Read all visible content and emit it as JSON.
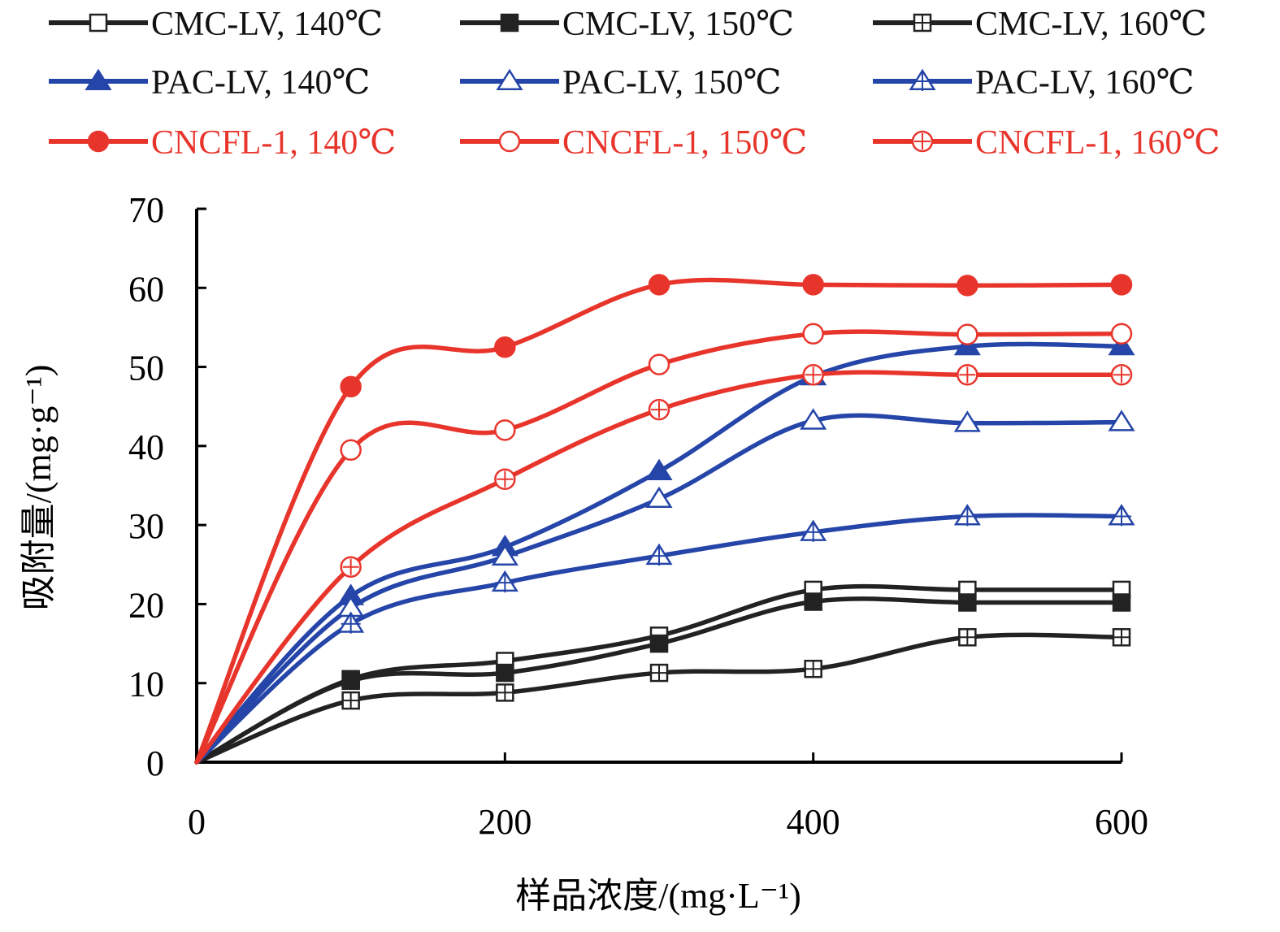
{
  "chart_data": {
    "type": "line",
    "title": "",
    "xlabel": "样品浓度/(mg·L⁻¹)",
    "ylabel": "吸附量/(mg·g⁻¹)",
    "xlim": [
      0,
      600
    ],
    "ylim": [
      0,
      70
    ],
    "xticks": [
      "0",
      "200",
      "400",
      "600"
    ],
    "yticks": [
      "0",
      "10",
      "20",
      "30",
      "40",
      "50",
      "60",
      "70"
    ],
    "grid": false,
    "legend_position": "top",
    "x": [
      0,
      100,
      200,
      300,
      400,
      500,
      600
    ],
    "series": [
      {
        "name": "CMC-LV, 140℃",
        "color": "#222222",
        "marker": "square-open",
        "values": [
          0,
          10.5,
          12.8,
          16.0,
          21.8,
          21.8,
          21.8
        ]
      },
      {
        "name": "CMC-LV, 150℃",
        "color": "#222222",
        "marker": "square-filled",
        "values": [
          0,
          10.3,
          11.3,
          15.0,
          20.3,
          20.2,
          20.2
        ]
      },
      {
        "name": "CMC-LV, 160℃",
        "color": "#222222",
        "marker": "square-plus",
        "values": [
          0,
          7.8,
          8.8,
          11.3,
          11.8,
          15.8,
          15.8
        ]
      },
      {
        "name": "PAC-LV, 140℃",
        "color": "#2545a8",
        "marker": "triangle-filled",
        "values": [
          0,
          21.0,
          27.2,
          36.8,
          48.8,
          52.6,
          52.6
        ]
      },
      {
        "name": "PAC-LV, 150℃",
        "color": "#2545a8",
        "marker": "triangle-open",
        "values": [
          0,
          19.5,
          26.0,
          33.3,
          43.2,
          42.9,
          43.0
        ]
      },
      {
        "name": "PAC-LV, 160℃",
        "color": "#2545a8",
        "marker": "triangle-plus",
        "values": [
          0,
          17.5,
          22.7,
          26.1,
          29.1,
          31.1,
          31.1
        ]
      },
      {
        "name": "CNCFL-1, 140℃",
        "color": "#e8352c",
        "marker": "circle-filled",
        "values": [
          0,
          47.5,
          52.5,
          60.4,
          60.4,
          60.3,
          60.4
        ]
      },
      {
        "name": "CNCFL-1, 150℃",
        "color": "#e8352c",
        "marker": "circle-open",
        "values": [
          0,
          39.5,
          42.0,
          50.3,
          54.2,
          54.1,
          54.2
        ]
      },
      {
        "name": "CNCFL-1, 160℃",
        "color": "#e8352c",
        "marker": "circle-plus",
        "values": [
          0,
          24.7,
          35.8,
          44.6,
          49.0,
          49.0,
          49.0
        ]
      }
    ]
  }
}
